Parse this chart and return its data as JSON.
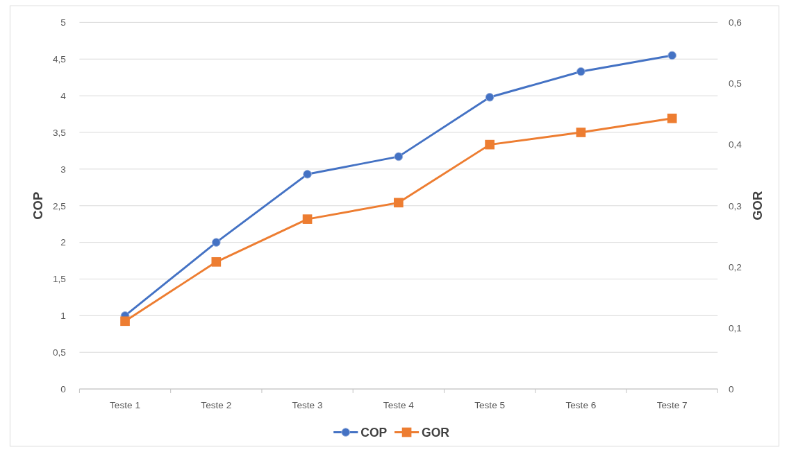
{
  "chart_data": {
    "type": "line",
    "categories": [
      "Teste 1",
      "Teste 2",
      "Teste 3",
      "Teste 4",
      "Teste 5",
      "Teste 6",
      "Teste 7"
    ],
    "ylabel": "COP",
    "y2label": "GOR",
    "series": [
      {
        "name": "COP",
        "color": "#4472c4",
        "marker": "circle",
        "values": [
          1.0,
          2.0,
          2.93,
          3.17,
          3.98,
          4.33,
          4.55
        ]
      },
      {
        "name": "GOR",
        "color": "#ed7d31",
        "marker": "square",
        "axis": "y2",
        "values": [
          0.111,
          0.208,
          0.278,
          0.305,
          0.4,
          0.42,
          0.443
        ]
      }
    ],
    "ylim": [
      0,
      5
    ],
    "yticks": [
      0,
      {
        "value": 0.5,
        "label": "0,5"
      },
      1,
      {
        "value": 1.5,
        "label": "1,5"
      },
      2,
      {
        "value": 2.5,
        "label": "2,5"
      },
      3,
      {
        "value": 3.5,
        "label": "3,5"
      },
      4,
      {
        "value": 4.5,
        "label": "4,5"
      },
      5
    ],
    "y2lim": [
      0,
      0.6
    ],
    "y2ticks": [
      0,
      {
        "value": 0.1,
        "label": "0,1"
      },
      {
        "value": 0.2,
        "label": "0,2"
      },
      {
        "value": 0.3,
        "label": "0,3"
      },
      {
        "value": 0.4,
        "label": "0,4"
      },
      {
        "value": 0.5,
        "label": "0,5"
      },
      {
        "value": 0.6,
        "label": "0,6"
      }
    ],
    "grid": "y",
    "legend": "bottom",
    "line_style": "solid"
  }
}
